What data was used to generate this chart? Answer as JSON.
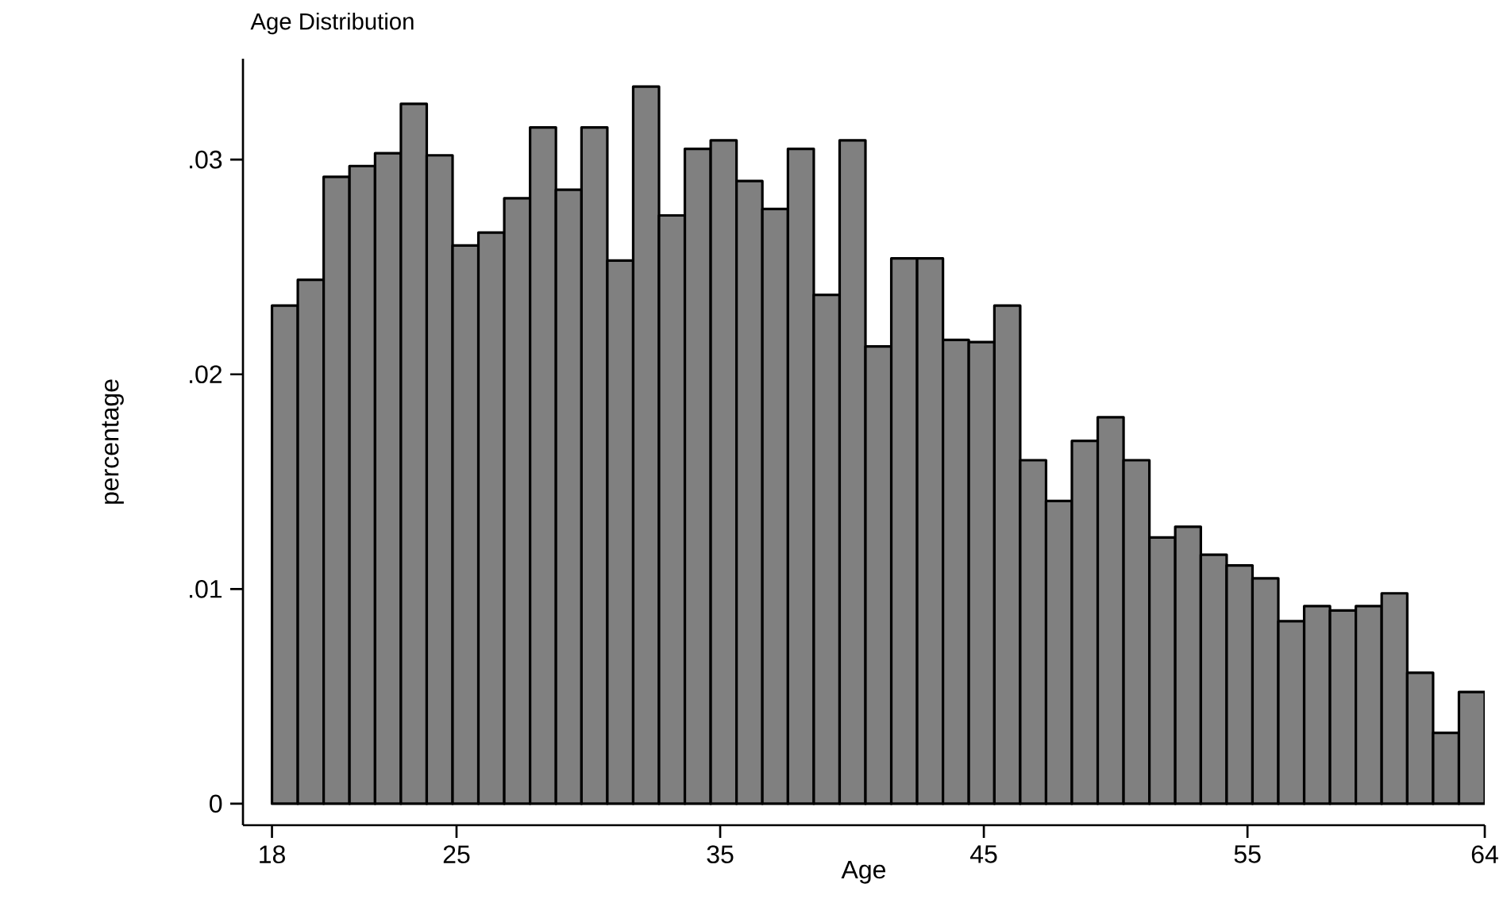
{
  "chart_data": {
    "type": "histogram",
    "title": "Age Distribution",
    "xlabel": "Age",
    "ylabel": "percentage",
    "color": "#808080",
    "bins": [
      18,
      18.98,
      19.96,
      20.94,
      21.91,
      22.89,
      23.87,
      24.85,
      25.83,
      26.81,
      27.79,
      28.77,
      29.74,
      30.72,
      31.7,
      32.68,
      33.66,
      34.64,
      35.62,
      36.6,
      37.57,
      38.55,
      39.53,
      40.51,
      41.49,
      42.47,
      43.45,
      44.43,
      45.4,
      46.38,
      47.36,
      48.34,
      49.32,
      50.3,
      51.28,
      52.26,
      53.23,
      54.21,
      55.19,
      56.17,
      57.15,
      58.13,
      59.11,
      60.09,
      61.06,
      62.04,
      63.02,
      64
    ],
    "values": [
      0.0232,
      0.0244,
      0.0292,
      0.0297,
      0.0303,
      0.0326,
      0.0302,
      0.026,
      0.0266,
      0.0282,
      0.0315,
      0.0286,
      0.0315,
      0.0253,
      0.0334,
      0.0274,
      0.0305,
      0.0309,
      0.029,
      0.0277,
      0.0305,
      0.0237,
      0.0309,
      0.0213,
      0.0254,
      0.0254,
      0.0216,
      0.0215,
      0.0232,
      0.016,
      0.0141,
      0.0169,
      0.018,
      0.016,
      0.0124,
      0.0129,
      0.0116,
      0.0111,
      0.0105,
      0.0085,
      0.0092,
      0.009,
      0.0092,
      0.0098,
      0.0061,
      0.0033,
      0.0052
    ],
    "xlim": [
      16.9,
      64
    ],
    "ylim": [
      -0.001,
      0.0347
    ],
    "xticks": [
      18,
      25,
      35,
      45,
      55,
      64
    ],
    "yticks": [
      0,
      {
        "value": 0.01,
        "label": ".01"
      },
      {
        "value": 0.02,
        "label": ".02"
      },
      {
        "value": 0.03,
        "label": ".03"
      }
    ]
  }
}
